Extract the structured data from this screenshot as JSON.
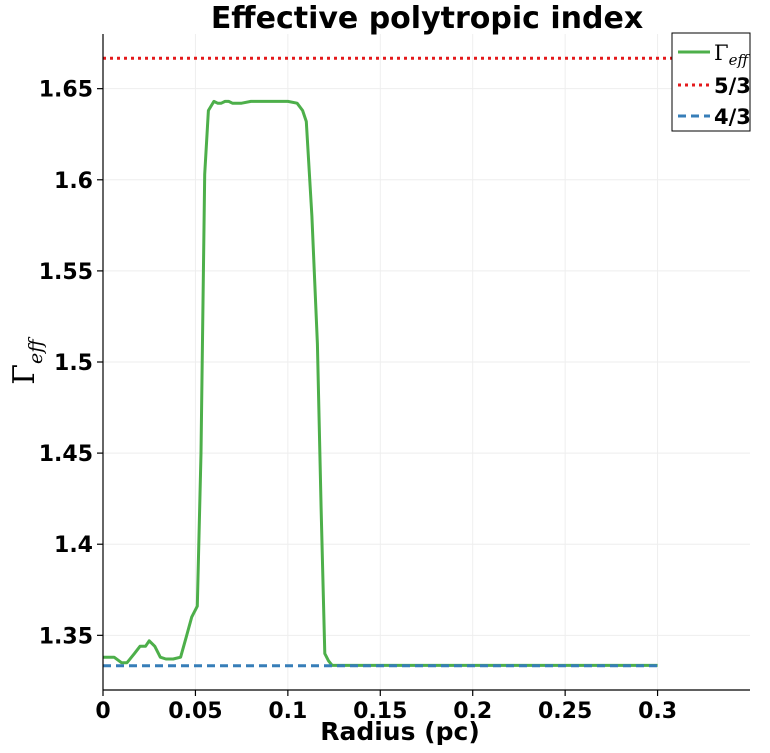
{
  "chart_data": {
    "type": "line",
    "title": "Effective polytropic index",
    "xlabel": "Radius (pc)",
    "ylabel_main": "Γ",
    "ylabel_sub": "eff",
    "xlim": [
      0,
      0.35
    ],
    "ylim": [
      1.32,
      1.68
    ],
    "grid": true,
    "legend_position": "top-right",
    "x_ticks": [
      0,
      0.05,
      0.1,
      0.15,
      0.2,
      0.25,
      0.3
    ],
    "x_tick_labels": [
      "0",
      "0.05",
      "0.1",
      "0.15",
      "0.2",
      "0.25",
      "0.3"
    ],
    "y_ticks": [
      1.35,
      1.4,
      1.45,
      1.5,
      1.55,
      1.6,
      1.65
    ],
    "y_tick_labels": [
      "1.35",
      "1.4",
      "1.45",
      "1.5",
      "1.55",
      "1.6",
      "1.65"
    ],
    "series": [
      {
        "name_main": "Γ",
        "name_sub": "eff",
        "color": "#4daf4a",
        "style": "solid",
        "x": [
          0,
          0.006,
          0.01,
          0.013,
          0.017,
          0.02,
          0.023,
          0.025,
          0.028,
          0.031,
          0.034,
          0.038,
          0.042,
          0.045,
          0.048,
          0.051,
          0.053,
          0.055,
          0.057,
          0.06,
          0.062,
          0.064,
          0.066,
          0.068,
          0.07,
          0.075,
          0.08,
          0.085,
          0.09,
          0.095,
          0.1,
          0.105,
          0.108,
          0.11,
          0.113,
          0.116,
          0.118,
          0.12,
          0.122,
          0.124,
          0.13,
          0.15,
          0.2,
          0.25,
          0.3
        ],
        "y": [
          1.338,
          1.338,
          1.335,
          1.335,
          1.34,
          1.344,
          1.344,
          1.347,
          1.344,
          1.338,
          1.337,
          1.337,
          1.338,
          1.349,
          1.36,
          1.366,
          1.45,
          1.603,
          1.638,
          1.643,
          1.642,
          1.642,
          1.643,
          1.643,
          1.642,
          1.642,
          1.643,
          1.643,
          1.643,
          1.643,
          1.643,
          1.642,
          1.638,
          1.632,
          1.58,
          1.51,
          1.42,
          1.34,
          1.336,
          1.3335,
          1.3335,
          1.3335,
          1.3335,
          1.3335,
          1.3335
        ]
      },
      {
        "name": "5/3",
        "color": "#e41a1c",
        "style": "dotted",
        "x": [
          0,
          0.35
        ],
        "y": [
          1.6667,
          1.6667
        ]
      },
      {
        "name": "4/3",
        "color": "#377eb8",
        "style": "dashed",
        "x": [
          0,
          0.3
        ],
        "y": [
          1.3333,
          1.3333
        ]
      }
    ]
  }
}
